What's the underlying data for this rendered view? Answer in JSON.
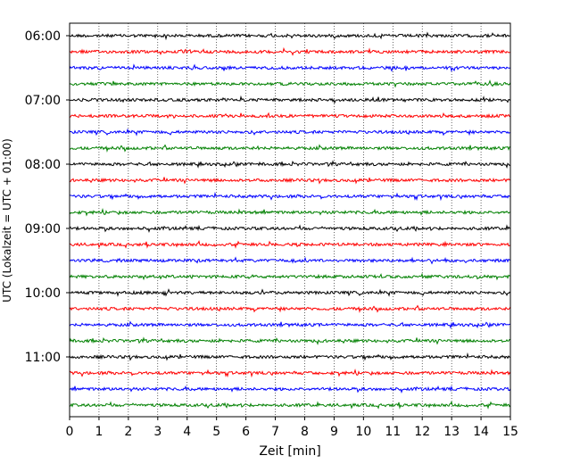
{
  "chart_data": {
    "type": "line",
    "title": "",
    "xlabel": "Zeit  [min]",
    "ylabel": "UTC (Lokalzeit = UTC + 01:00)",
    "xlim": [
      0,
      15
    ],
    "x_ticks": [
      0,
      1,
      2,
      3,
      4,
      5,
      6,
      7,
      8,
      9,
      10,
      11,
      12,
      13,
      14,
      15
    ],
    "y_ticks": [
      "06:00",
      "07:00",
      "08:00",
      "09:00",
      "10:00",
      "11:00"
    ],
    "trace_interval_min": 15,
    "trace_start": "06:00",
    "trace_count": 24,
    "trace_colors": [
      "#000000",
      "#ff0000",
      "#0000ff",
      "#008000"
    ],
    "grid": "vertical dotted at each minute",
    "legend": "none"
  }
}
